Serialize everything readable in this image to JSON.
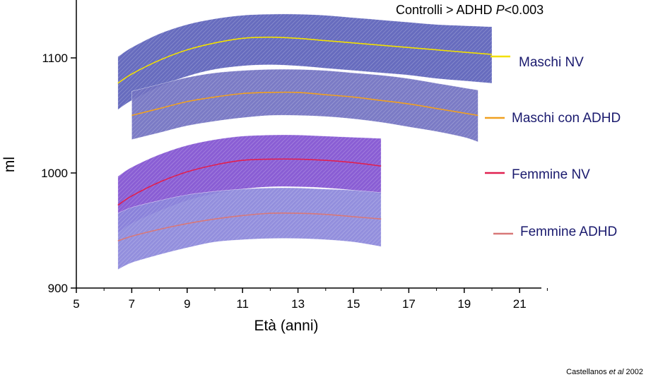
{
  "chart_data": {
    "type": "area",
    "xlabel": "Età (anni)",
    "ylabel": "ml",
    "xlim": [
      5,
      22
    ],
    "ylim": [
      900,
      1150
    ],
    "x_ticks": [
      "5",
      "7",
      "9",
      "11",
      "13",
      "15",
      "17",
      "19",
      "21"
    ],
    "y_ticks": [
      "900",
      "1000",
      "1100"
    ],
    "grid": false,
    "legend_position": "right",
    "annotation": {
      "prefix": "Controlli > ADHD ",
      "p_symbol": "P",
      "suffix": "<0.003"
    },
    "citation": {
      "authors": "Castellanos ",
      "etal": "et al",
      "year": " 2002"
    },
    "series": [
      {
        "name": "Maschi NV",
        "line_color": "#f2e000",
        "band_color": "#5a5fb8",
        "x": [
          6.5,
          7,
          8,
          9,
          10,
          11,
          12,
          13,
          14,
          15,
          16,
          17,
          18,
          19,
          20
        ],
        "y": [
          1078,
          1086,
          1098,
          1107,
          1113,
          1117,
          1118,
          1117,
          1115,
          1113,
          1111,
          1109,
          1107,
          1105,
          1103
        ],
        "upper": [
          1101,
          1109,
          1121,
          1129,
          1134,
          1137,
          1138,
          1138,
          1137,
          1135,
          1133,
          1131,
          1129,
          1128,
          1127
        ],
        "lower": [
          1055,
          1063,
          1075,
          1084,
          1090,
          1093,
          1094,
          1093,
          1091,
          1089,
          1087,
          1085,
          1082,
          1080,
          1078
        ]
      },
      {
        "name": "Maschi con ADHD",
        "line_color": "#f0a020",
        "band_color": "#7070c0",
        "x": [
          7,
          8,
          9,
          10,
          11,
          12,
          13,
          14,
          15,
          16,
          17,
          18,
          19,
          19.5
        ],
        "y": [
          1050,
          1056,
          1062,
          1066,
          1069,
          1070,
          1070,
          1068,
          1066,
          1063,
          1060,
          1056,
          1052,
          1050
        ],
        "upper": [
          1071,
          1077,
          1083,
          1087,
          1089,
          1090,
          1090,
          1089,
          1087,
          1085,
          1082,
          1078,
          1074,
          1072
        ],
        "lower": [
          1029,
          1035,
          1041,
          1045,
          1048,
          1050,
          1050,
          1049,
          1047,
          1044,
          1040,
          1036,
          1031,
          1027
        ]
      },
      {
        "name": "Femmine NV",
        "line_color": "#e02050",
        "band_color": "#8050d0",
        "x": [
          6.5,
          7,
          8,
          9,
          10,
          11,
          12,
          13,
          14,
          15,
          16
        ],
        "y": [
          972,
          980,
          992,
          1001,
          1007,
          1011,
          1012,
          1012,
          1011,
          1009,
          1006
        ],
        "upper": [
          997,
          1005,
          1016,
          1024,
          1029,
          1032,
          1033,
          1033,
          1032,
          1031,
          1030
        ],
        "lower": [
          948,
          956,
          967,
          976,
          982,
          986,
          988,
          988,
          987,
          985,
          982
        ]
      },
      {
        "name": "Femmine  ADHD",
        "line_color": "#d87878",
        "band_color": "#8a86da",
        "x": [
          6.5,
          7,
          8,
          9,
          10,
          11,
          12,
          13,
          14,
          15,
          16
        ],
        "y": [
          941,
          945,
          951,
          956,
          960,
          963,
          965,
          965,
          964,
          962,
          960
        ],
        "upper": [
          965,
          970,
          976,
          981,
          984,
          986,
          987,
          987,
          986,
          985,
          983
        ],
        "lower": [
          916,
          922,
          929,
          935,
          940,
          942,
          943,
          943,
          942,
          940,
          936
        ]
      }
    ]
  }
}
